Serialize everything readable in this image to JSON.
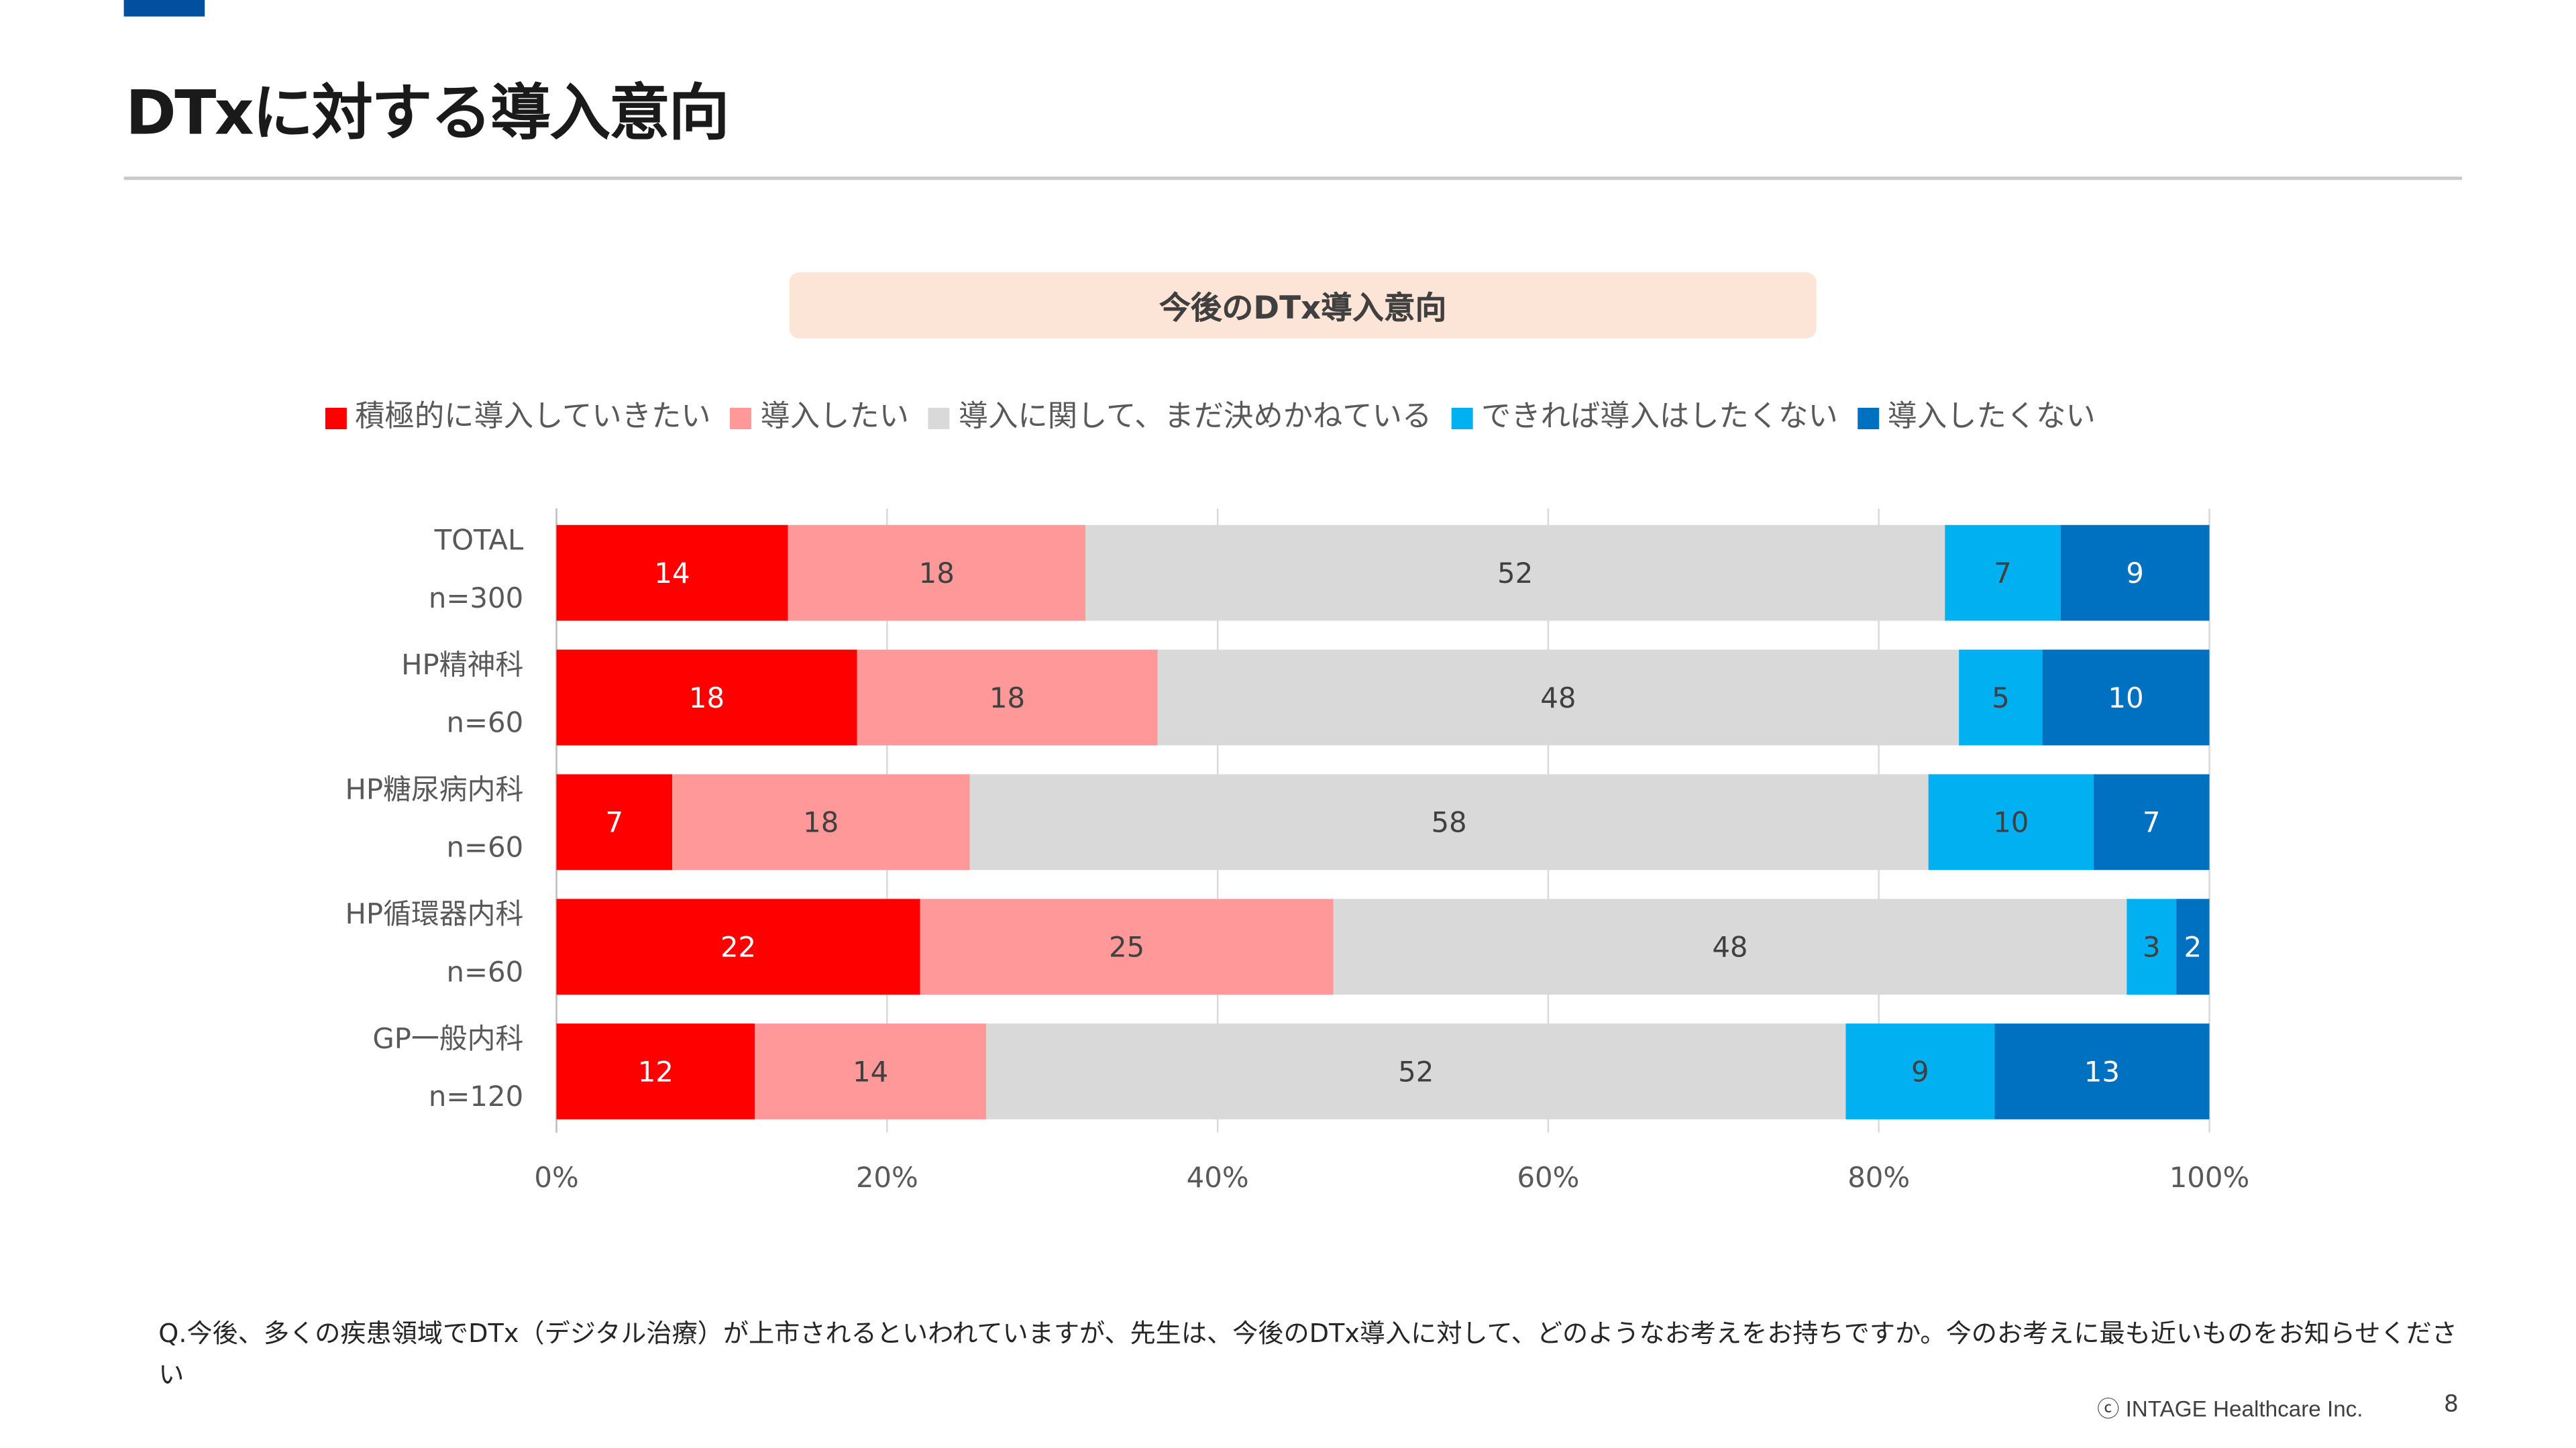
{
  "header": {
    "title": "DTxに対する導入意向"
  },
  "chart_banner": "今後のDTx導入意向",
  "chart_data": {
    "type": "bar",
    "orientation": "horizontal",
    "stacked": "100%",
    "categories": [
      {
        "name": "TOTAL",
        "n": "n=300"
      },
      {
        "name": "HP精神科",
        "n": "n=60"
      },
      {
        "name": "HP糖尿病内科",
        "n": "n=60"
      },
      {
        "name": "HP循環器内科",
        "n": "n=60"
      },
      {
        "name": "GP一般内科",
        "n": "n=120"
      }
    ],
    "series": [
      {
        "name": "積極的に導入していきたい",
        "color": "#FF0000",
        "label_color": "#FFFFFF",
        "values": [
          14,
          18,
          7,
          22,
          12
        ]
      },
      {
        "name": "導入したい",
        "color": "#FF9999",
        "label_color": "#404040",
        "values": [
          18,
          18,
          18,
          25,
          14
        ]
      },
      {
        "name": "導入に関して、まだ決めかねている",
        "color": "#D9D9D9",
        "label_color": "#404040",
        "values": [
          52,
          48,
          58,
          48,
          52
        ]
      },
      {
        "name": "できれば導入はしたくない",
        "color": "#00B0F0",
        "label_color": "#404040",
        "values": [
          7,
          5,
          10,
          3,
          9
        ]
      },
      {
        "name": "導入したくない",
        "color": "#0070C0",
        "label_color": "#FFFFFF",
        "values": [
          9,
          10,
          7,
          2,
          13
        ]
      }
    ],
    "xticks": [
      "0%",
      "20%",
      "40%",
      "60%",
      "80%",
      "100%"
    ],
    "xlim": [
      0,
      100
    ],
    "grid": true,
    "legend": "top"
  },
  "footnote": "Q.今後、多くの疾患領域でDTx（デジタル治療）が上市されるといわれていますが、先生は、今後のDTx導入に対して、どのようなお考えをお持ちですか。今のお考えに最も近いものをお知らせください",
  "copyright": "ⓒ INTAGE Healthcare Inc.",
  "page_number": "8"
}
